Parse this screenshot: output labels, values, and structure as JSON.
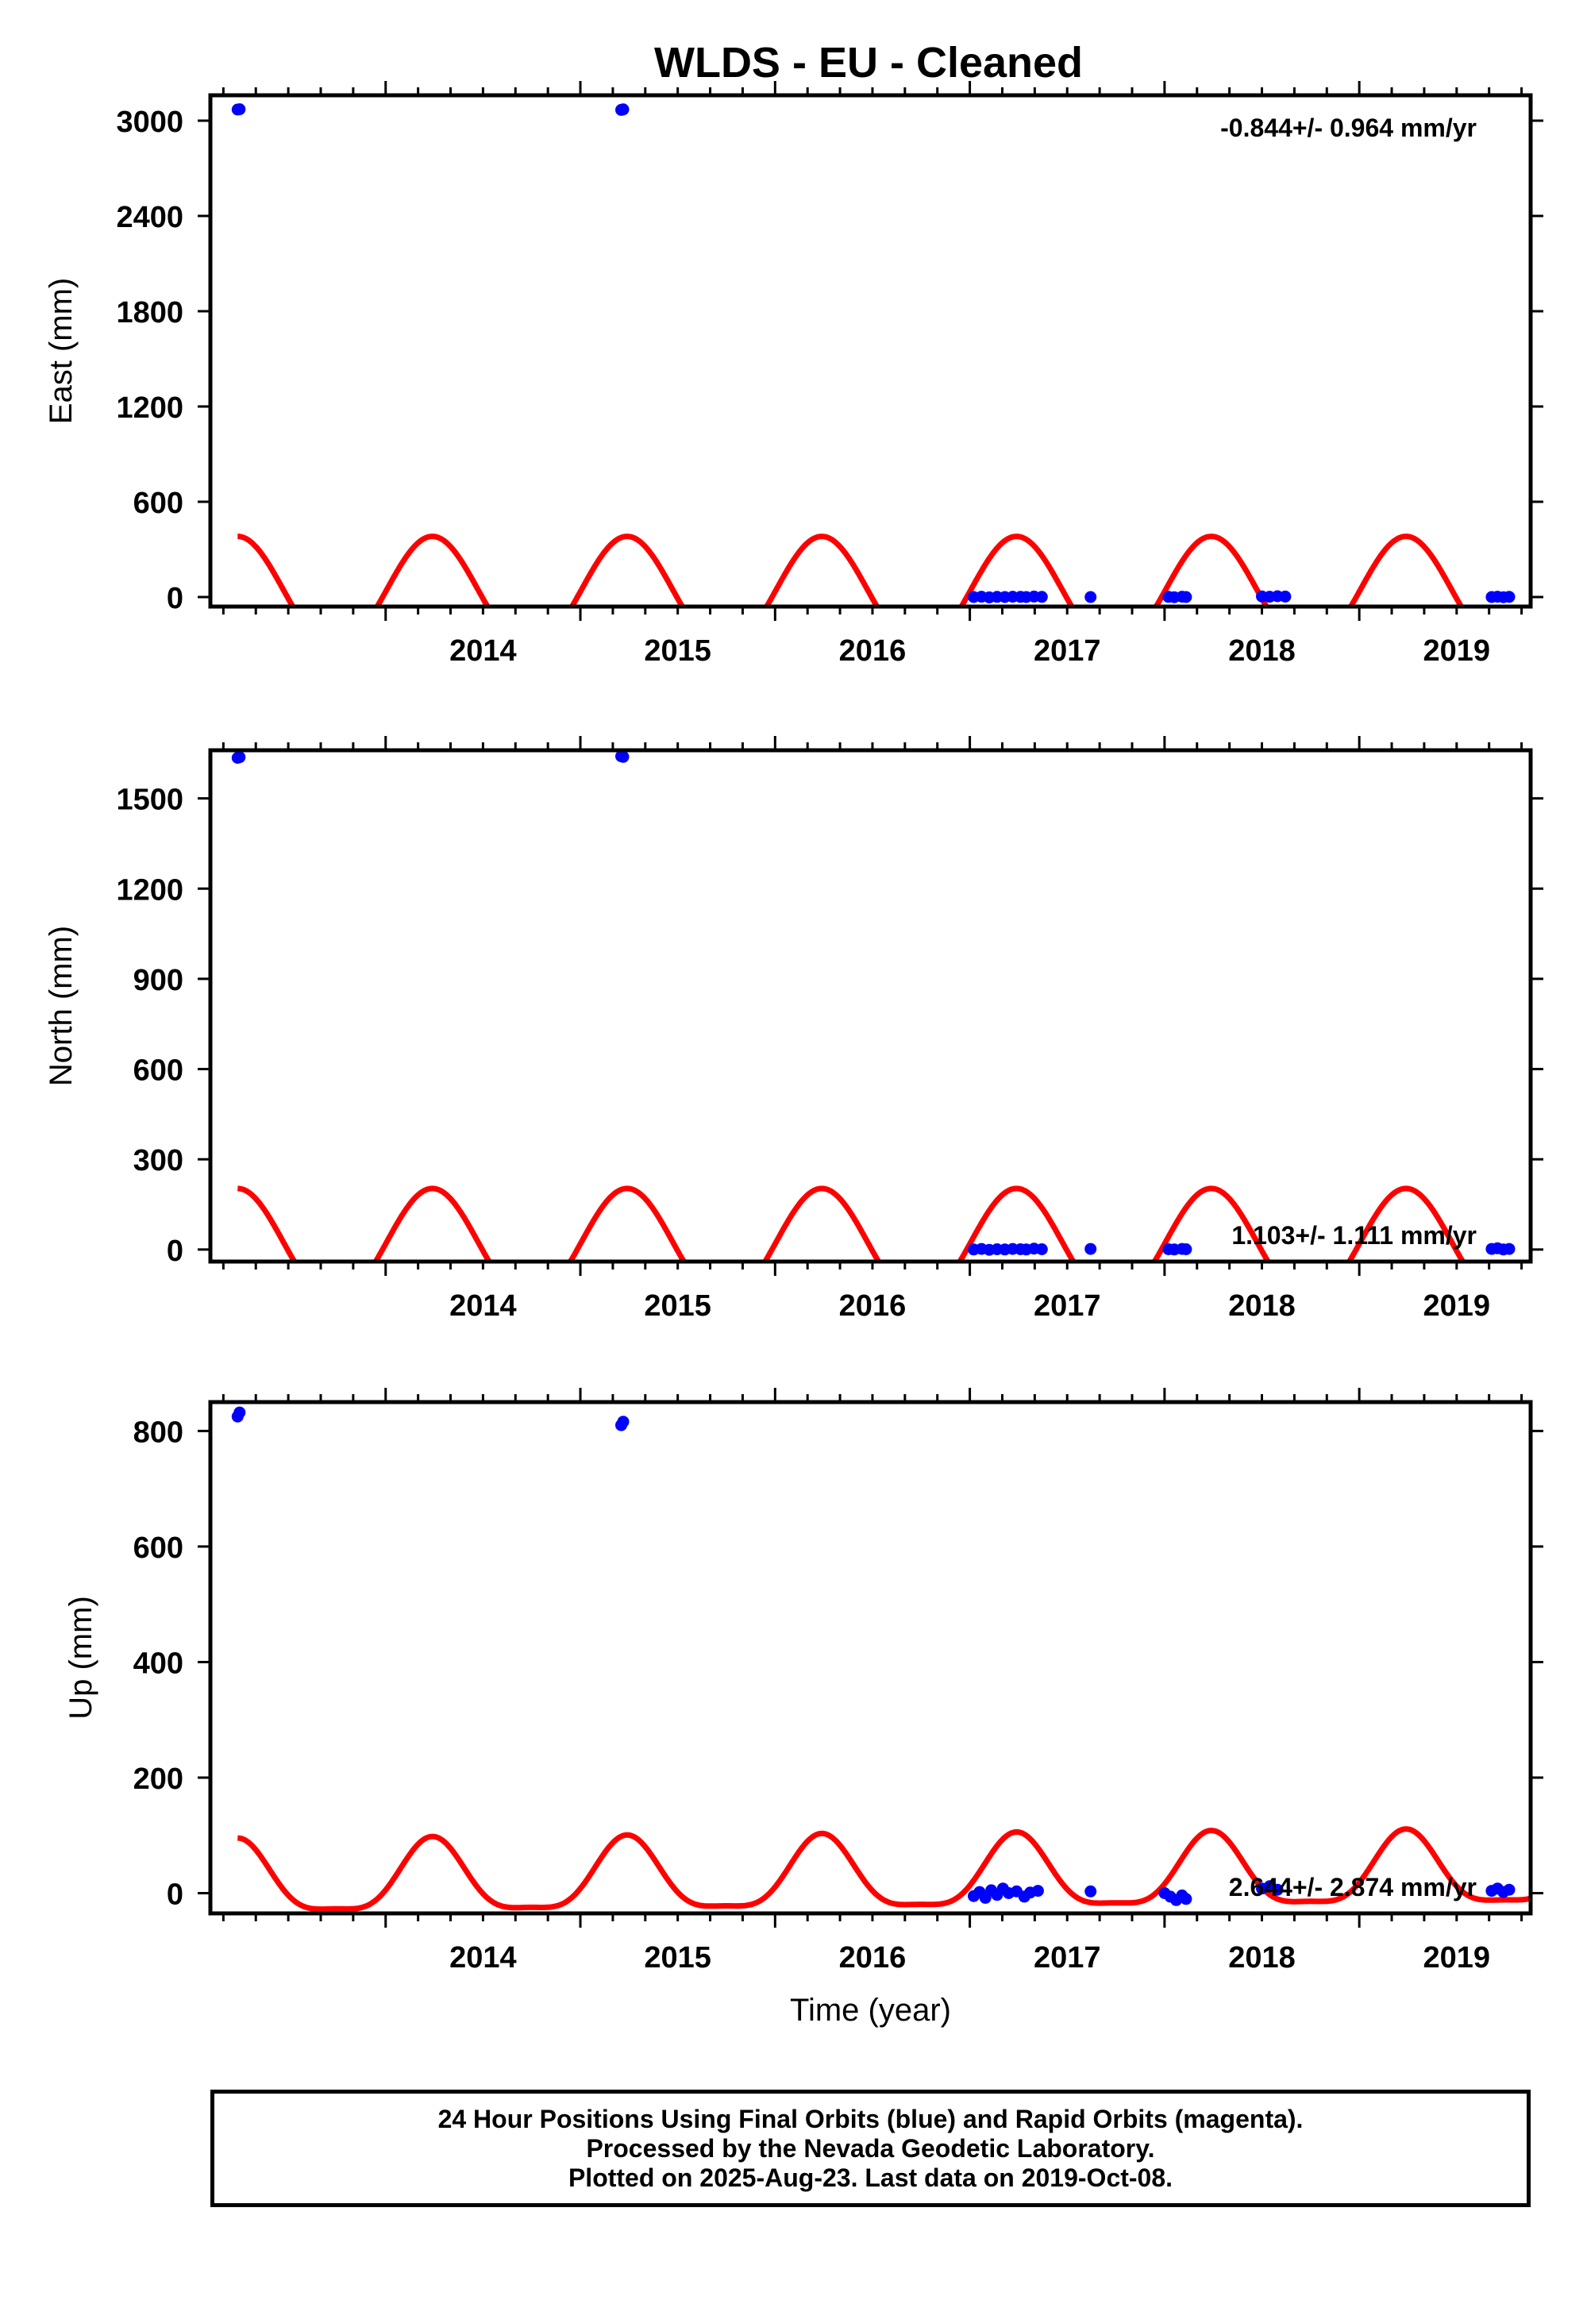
{
  "title": "WLDS  - EU - Cleaned",
  "footer": {
    "line1": "24 Hour Positions Using Final Orbits (blue) and Rapid Orbits (magenta).",
    "line2": "Processed by the Nevada Geodetic Laboratory.",
    "line3": "Plotted on 2025-Aug-23. Last data on 2019-Oct-08."
  },
  "colors": {
    "final_orbits": "#0000ff",
    "model": "#ff0000",
    "frame": "#000000"
  },
  "chart_data": [
    {
      "type": "scatter",
      "name": "east",
      "ylabel": "East (mm)",
      "xlabel": "",
      "xlim": [
        2013.1,
        2019.88
      ],
      "ylim": [
        -60,
        3160
      ],
      "xticks": [
        2014,
        2015,
        2016,
        2017,
        2018,
        2019
      ],
      "yticks": [
        0,
        600,
        1200,
        1800,
        2400,
        3000
      ],
      "rate_text": "-0.844+/- 0.964 mm/yr",
      "rate_position": "top-right",
      "model_params": {
        "base": 22,
        "amp": 350,
        "semi": 10
      },
      "points": [
        [
          2013.24,
          3070
        ],
        [
          2013.25,
          3072
        ],
        [
          2015.21,
          3068
        ],
        [
          2015.22,
          3071
        ],
        [
          2017.02,
          0
        ],
        [
          2017.06,
          2
        ],
        [
          2017.1,
          -2
        ],
        [
          2017.14,
          1
        ],
        [
          2017.18,
          0
        ],
        [
          2017.22,
          2
        ],
        [
          2017.26,
          1
        ],
        [
          2017.29,
          0
        ],
        [
          2017.33,
          3
        ],
        [
          2017.37,
          1
        ],
        [
          2017.62,
          0
        ],
        [
          2018.02,
          1
        ],
        [
          2018.05,
          -1
        ],
        [
          2018.09,
          2
        ],
        [
          2018.11,
          0
        ],
        [
          2018.5,
          4
        ],
        [
          2018.54,
          2
        ],
        [
          2018.58,
          5
        ],
        [
          2018.62,
          3
        ],
        [
          2019.68,
          0
        ],
        [
          2019.71,
          2
        ],
        [
          2019.74,
          -1
        ],
        [
          2019.77,
          1
        ]
      ]
    },
    {
      "type": "scatter",
      "name": "north",
      "ylabel": "North (mm)",
      "xlabel": "",
      "xlim": [
        2013.1,
        2019.88
      ],
      "ylim": [
        -40,
        1660
      ],
      "xticks": [
        2014,
        2015,
        2016,
        2017,
        2018,
        2019
      ],
      "yticks": [
        0,
        300,
        600,
        900,
        1200,
        1500
      ],
      "rate_text": "1.103+/- 1.111 mm/yr",
      "rate_position": "bottom-right",
      "model_params": {
        "base": 12,
        "amp": 186,
        "semi": 5
      },
      "points": [
        [
          2013.24,
          1635
        ],
        [
          2013.25,
          1637
        ],
        [
          2015.21,
          1640
        ],
        [
          2015.22,
          1638
        ],
        [
          2017.02,
          0
        ],
        [
          2017.06,
          2
        ],
        [
          2017.1,
          -1
        ],
        [
          2017.14,
          1
        ],
        [
          2017.18,
          0
        ],
        [
          2017.22,
          2
        ],
        [
          2017.26,
          1
        ],
        [
          2017.29,
          0
        ],
        [
          2017.33,
          3
        ],
        [
          2017.37,
          1
        ],
        [
          2017.62,
          2
        ],
        [
          2018.02,
          1
        ],
        [
          2018.05,
          0
        ],
        [
          2018.09,
          2
        ],
        [
          2018.11,
          1
        ],
        [
          2019.68,
          2
        ],
        [
          2019.71,
          4
        ],
        [
          2019.74,
          0
        ],
        [
          2019.77,
          2
        ]
      ]
    },
    {
      "type": "scatter",
      "name": "up",
      "ylabel": "Up (mm)",
      "xlabel": "Time (year)",
      "xlim": [
        2013.1,
        2019.88
      ],
      "ylim": [
        -35,
        850
      ],
      "xticks": [
        2014,
        2015,
        2016,
        2017,
        2018,
        2019
      ],
      "yticks": [
        0,
        200,
        400,
        600,
        800
      ],
      "rate_text": "2.644+/- 2.874 mm/yr",
      "rate_position": "bottom-right",
      "model_params": {
        "base": 25,
        "amp": 62,
        "semi": 17,
        "trend": 2.6,
        "x0": 2016.5
      },
      "points": [
        [
          2013.24,
          825
        ],
        [
          2013.25,
          832
        ],
        [
          2015.21,
          810
        ],
        [
          2015.22,
          816
        ],
        [
          2017.02,
          -5
        ],
        [
          2017.05,
          2
        ],
        [
          2017.08,
          -8
        ],
        [
          2017.11,
          5
        ],
        [
          2017.14,
          -3
        ],
        [
          2017.17,
          8
        ],
        [
          2017.2,
          0
        ],
        [
          2017.24,
          3
        ],
        [
          2017.28,
          -6
        ],
        [
          2017.31,
          1
        ],
        [
          2017.35,
          4
        ],
        [
          2017.62,
          3
        ],
        [
          2018.0,
          0
        ],
        [
          2018.03,
          -6
        ],
        [
          2018.06,
          -12
        ],
        [
          2018.09,
          -4
        ],
        [
          2018.11,
          -10
        ],
        [
          2018.5,
          8
        ],
        [
          2018.54,
          12
        ],
        [
          2018.58,
          6
        ],
        [
          2019.68,
          4
        ],
        [
          2019.71,
          8
        ],
        [
          2019.74,
          2
        ],
        [
          2019.77,
          6
        ]
      ]
    }
  ]
}
